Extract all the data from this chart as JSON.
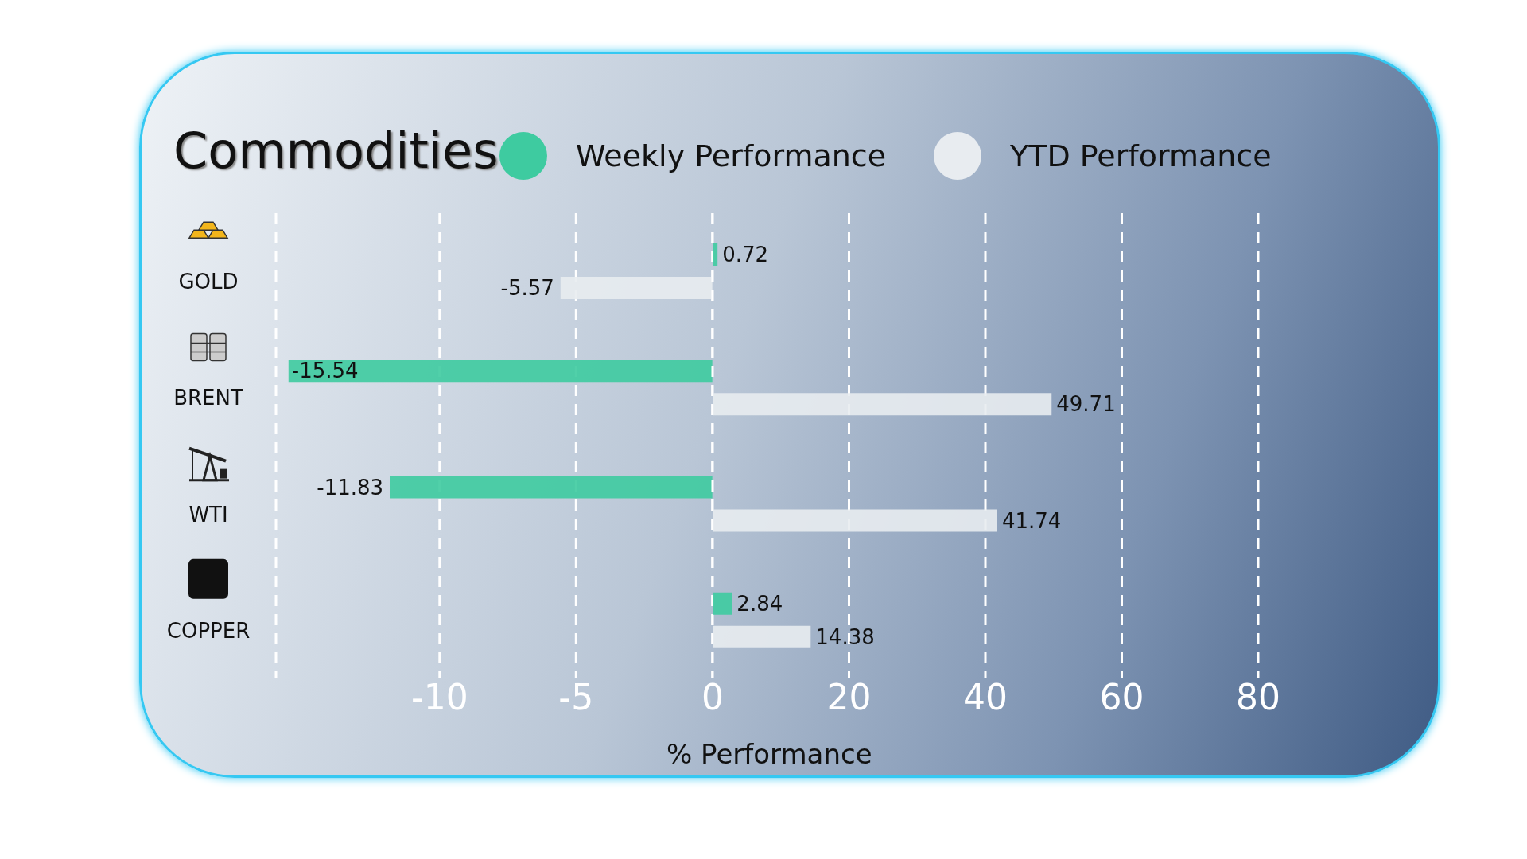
{
  "chart_data": [
    {
      "type": "bar",
      "orientation": "horizontal",
      "title": "Commodities",
      "categories": [
        "GOLD",
        "BRENT",
        "WTI",
        "COPPER"
      ],
      "series": [
        {
          "name": "Weekly Performance",
          "color": "#3ecba0",
          "values": [
            null,
            -15.54,
            -11.83,
            null
          ]
        },
        {
          "name": "YTD Performance",
          "color": "#e8ecf0",
          "values": [
            -5.57,
            null,
            null,
            null
          ]
        }
      ],
      "xlim": [
        -16,
        0
      ],
      "xticks": [
        -10,
        -5
      ],
      "grid": "x",
      "legend": "top",
      "data_labels": true
    },
    {
      "type": "bar",
      "orientation": "horizontal",
      "xlabel": "% Performance",
      "categories": [
        null,
        null,
        null,
        null
      ],
      "series": [
        {
          "color": "#3ecba0",
          "values": [
            0.72,
            null,
            null,
            2.84
          ]
        },
        {
          "color": "#e8ecf0",
          "values": [
            null,
            49.71,
            41.74,
            14.38
          ]
        }
      ],
      "xlim": [
        0,
        80
      ],
      "xticks": [
        0,
        20,
        40,
        60,
        80
      ],
      "grid": "x",
      "tick_labels": "x",
      "data_labels": true
    }
  ]
}
